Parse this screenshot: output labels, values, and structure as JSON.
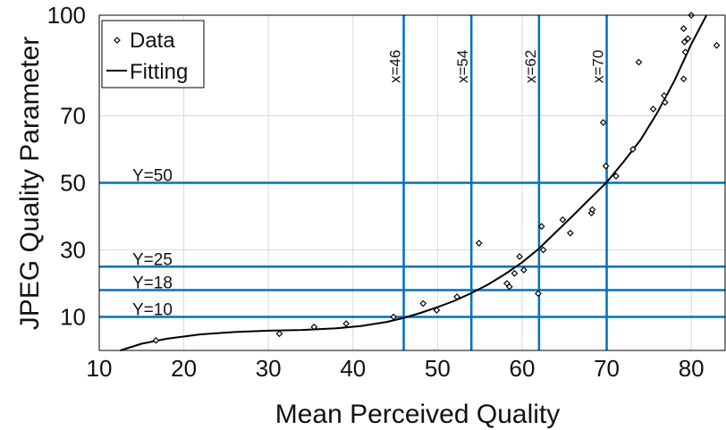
{
  "chart_data": {
    "type": "scatter",
    "xlabel": "Mean Perceived Quality",
    "ylabel": "JPEG Quality Parameter",
    "xlim": [
      10,
      84
    ],
    "ylim": [
      0,
      100
    ],
    "xticks": [
      "10",
      "20",
      "30",
      "40",
      "50",
      "60",
      "70",
      "80"
    ],
    "yticks": [
      "10",
      "30",
      "50",
      "70",
      "100"
    ],
    "ytick_values": [
      10,
      30,
      50,
      70,
      100
    ],
    "grid": true,
    "legend_placement": "top-left",
    "legend": [
      {
        "label": "Data",
        "marker": "diamond"
      },
      {
        "label": "Fitting",
        "marker": "line"
      }
    ],
    "series": [
      {
        "name": "Data",
        "points": [
          [
            16.7,
            3
          ],
          [
            31.3,
            5
          ],
          [
            35.4,
            7
          ],
          [
            39.2,
            8
          ],
          [
            44.8,
            10
          ],
          [
            48.3,
            14
          ],
          [
            49.9,
            12
          ],
          [
            52.3,
            16
          ],
          [
            54.9,
            32
          ],
          [
            58.2,
            20
          ],
          [
            58.5,
            19
          ],
          [
            59.1,
            23
          ],
          [
            59.7,
            28
          ],
          [
            60.2,
            24
          ],
          [
            61.9,
            17
          ],
          [
            62.3,
            37
          ],
          [
            62.5,
            30
          ],
          [
            64.8,
            39
          ],
          [
            65.7,
            35
          ],
          [
            68.2,
            41
          ],
          [
            68.3,
            42
          ],
          [
            69.6,
            68
          ],
          [
            69.9,
            55
          ],
          [
            71.1,
            52
          ],
          [
            73.1,
            60
          ],
          [
            73.8,
            86
          ],
          [
            75.5,
            72
          ],
          [
            76.8,
            76
          ],
          [
            76.9,
            74
          ],
          [
            79.1,
            81
          ],
          [
            79.1,
            96
          ],
          [
            79.2,
            92
          ],
          [
            79.3,
            89
          ],
          [
            79.6,
            93
          ],
          [
            80.0,
            100
          ],
          [
            83.0,
            91
          ]
        ]
      },
      {
        "name": "Fitting",
        "points": [
          [
            12.5,
            0
          ],
          [
            15,
            2
          ],
          [
            18,
            3.5
          ],
          [
            22,
            4.8
          ],
          [
            26,
            5.5
          ],
          [
            30,
            5.9
          ],
          [
            34,
            6.1
          ],
          [
            38,
            6.6
          ],
          [
            41,
            7.3
          ],
          [
            44,
            8.5
          ],
          [
            46,
            9.7
          ],
          [
            48,
            11.2
          ],
          [
            50,
            12.9
          ],
          [
            52,
            14.8
          ],
          [
            54,
            17.1
          ],
          [
            56,
            19.7
          ],
          [
            58,
            22.8
          ],
          [
            60,
            26.3
          ],
          [
            62,
            30.4
          ],
          [
            64,
            35.3
          ],
          [
            66,
            40.2
          ],
          [
            68,
            45.2
          ],
          [
            70,
            50.2
          ],
          [
            72,
            56.3
          ],
          [
            74,
            62.8
          ],
          [
            76,
            71.0
          ],
          [
            78,
            80.4
          ],
          [
            80,
            91.4
          ],
          [
            81.8,
            100
          ]
        ]
      }
    ],
    "vertical_lines": [
      {
        "x": 46,
        "label": "x=46"
      },
      {
        "x": 54,
        "label": "x=54"
      },
      {
        "x": 62,
        "label": "x=62"
      },
      {
        "x": 70,
        "label": "x=70"
      }
    ],
    "horizontal_lines": [
      {
        "y": 50,
        "label": "Y=50"
      },
      {
        "y": 25,
        "label": "Y=25"
      },
      {
        "y": 18,
        "label": "Y=18"
      },
      {
        "y": 10,
        "label": "Y=10"
      }
    ],
    "colors": {
      "reference_line": "#0072BD",
      "fit": "#000000",
      "grid": "#D9D9D9"
    }
  }
}
